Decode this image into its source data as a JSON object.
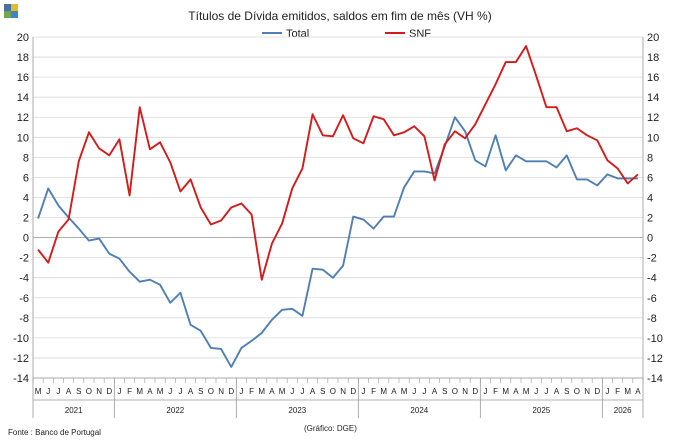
{
  "logo": {
    "colors": [
      "#4a6fa5",
      "#e8b923",
      "#6aa84f",
      "#3d85c6"
    ]
  },
  "chart_data": {
    "type": "line",
    "title": "Títulos de Dívida emitidos, saldos em fim de mês  (VH %)",
    "ylim": [
      -14,
      20
    ],
    "yticks": [
      -14,
      -12,
      -10,
      -8,
      -6,
      -4,
      -2,
      0,
      2,
      4,
      6,
      8,
      10,
      12,
      14,
      16,
      18,
      20
    ],
    "grid": true,
    "legend": "top",
    "x_month_labels": [
      "M",
      "J",
      "J",
      "A",
      "S",
      "O",
      "N",
      "D",
      "J",
      "F",
      "M",
      "A",
      "M",
      "J",
      "J",
      "A",
      "S",
      "O",
      "N",
      "D",
      "J",
      "F",
      "M",
      "A",
      "M",
      "J",
      "J",
      "A",
      "S",
      "O",
      "N",
      "D",
      "J",
      "F",
      "M",
      "A",
      "M",
      "J",
      "J",
      "A",
      "S",
      "O",
      "N",
      "D",
      "J",
      "F",
      "M",
      "A",
      "M",
      "J",
      "J",
      "A",
      "S",
      "O",
      "N",
      "D",
      "J",
      "F",
      "M",
      "A"
    ],
    "x_year_labels": [
      "2021",
      "2022",
      "2023",
      "2024",
      "2025",
      "2026"
    ],
    "x_year_spans": [
      [
        0,
        7
      ],
      [
        8,
        19
      ],
      [
        20,
        31
      ],
      [
        32,
        43
      ],
      [
        44,
        55
      ],
      [
        56,
        59
      ]
    ],
    "series": [
      {
        "name": "Total",
        "color": "#4f7fb5",
        "values": [
          1.9,
          4.9,
          3.2,
          2.0,
          0.9,
          -0.3,
          -0.1,
          -1.6,
          -2.1,
          -3.4,
          -4.4,
          -4.2,
          -4.7,
          -6.5,
          -5.5,
          -8.7,
          -9.3,
          -11.0,
          -11.1,
          -12.9,
          -11.0,
          -10.3,
          -9.5,
          -8.2,
          -7.2,
          -7.1,
          -7.8,
          -3.1,
          -3.2,
          -4.0,
          -2.8,
          2.1,
          1.8,
          0.9,
          2.1,
          2.1,
          5.0,
          6.6,
          6.6,
          6.4,
          9.1,
          12.0,
          10.6,
          7.7,
          7.1,
          10.2,
          6.7,
          8.2,
          7.6,
          7.6,
          7.6,
          7.0,
          8.2,
          5.8,
          5.8,
          5.2,
          6.3,
          5.9,
          5.9,
          5.9
        ]
      },
      {
        "name": "SNF",
        "color": "#d21c1c",
        "values": [
          -1.2,
          -2.5,
          0.6,
          1.8,
          7.6,
          10.5,
          8.9,
          8.2,
          9.8,
          4.2,
          13.0,
          8.8,
          9.5,
          7.5,
          4.6,
          5.8,
          3.0,
          1.3,
          1.7,
          3.0,
          3.4,
          2.3,
          -4.2,
          -0.6,
          1.4,
          4.9,
          6.9,
          12.3,
          10.2,
          10.1,
          12.2,
          9.9,
          9.4,
          12.1,
          11.8,
          10.2,
          10.5,
          11.1,
          10.1,
          5.7,
          9.3,
          10.6,
          9.9,
          11.3,
          13.3,
          15.3,
          17.5,
          17.5,
          19.1,
          16.1,
          13.0,
          13.0,
          10.6,
          10.9,
          10.2,
          9.7,
          7.7,
          6.9,
          5.4,
          6.3
        ]
      }
    ]
  },
  "footer": {
    "source": "Fonte : Banco de Portugal",
    "credit": "(Gráfico: DGE)"
  }
}
